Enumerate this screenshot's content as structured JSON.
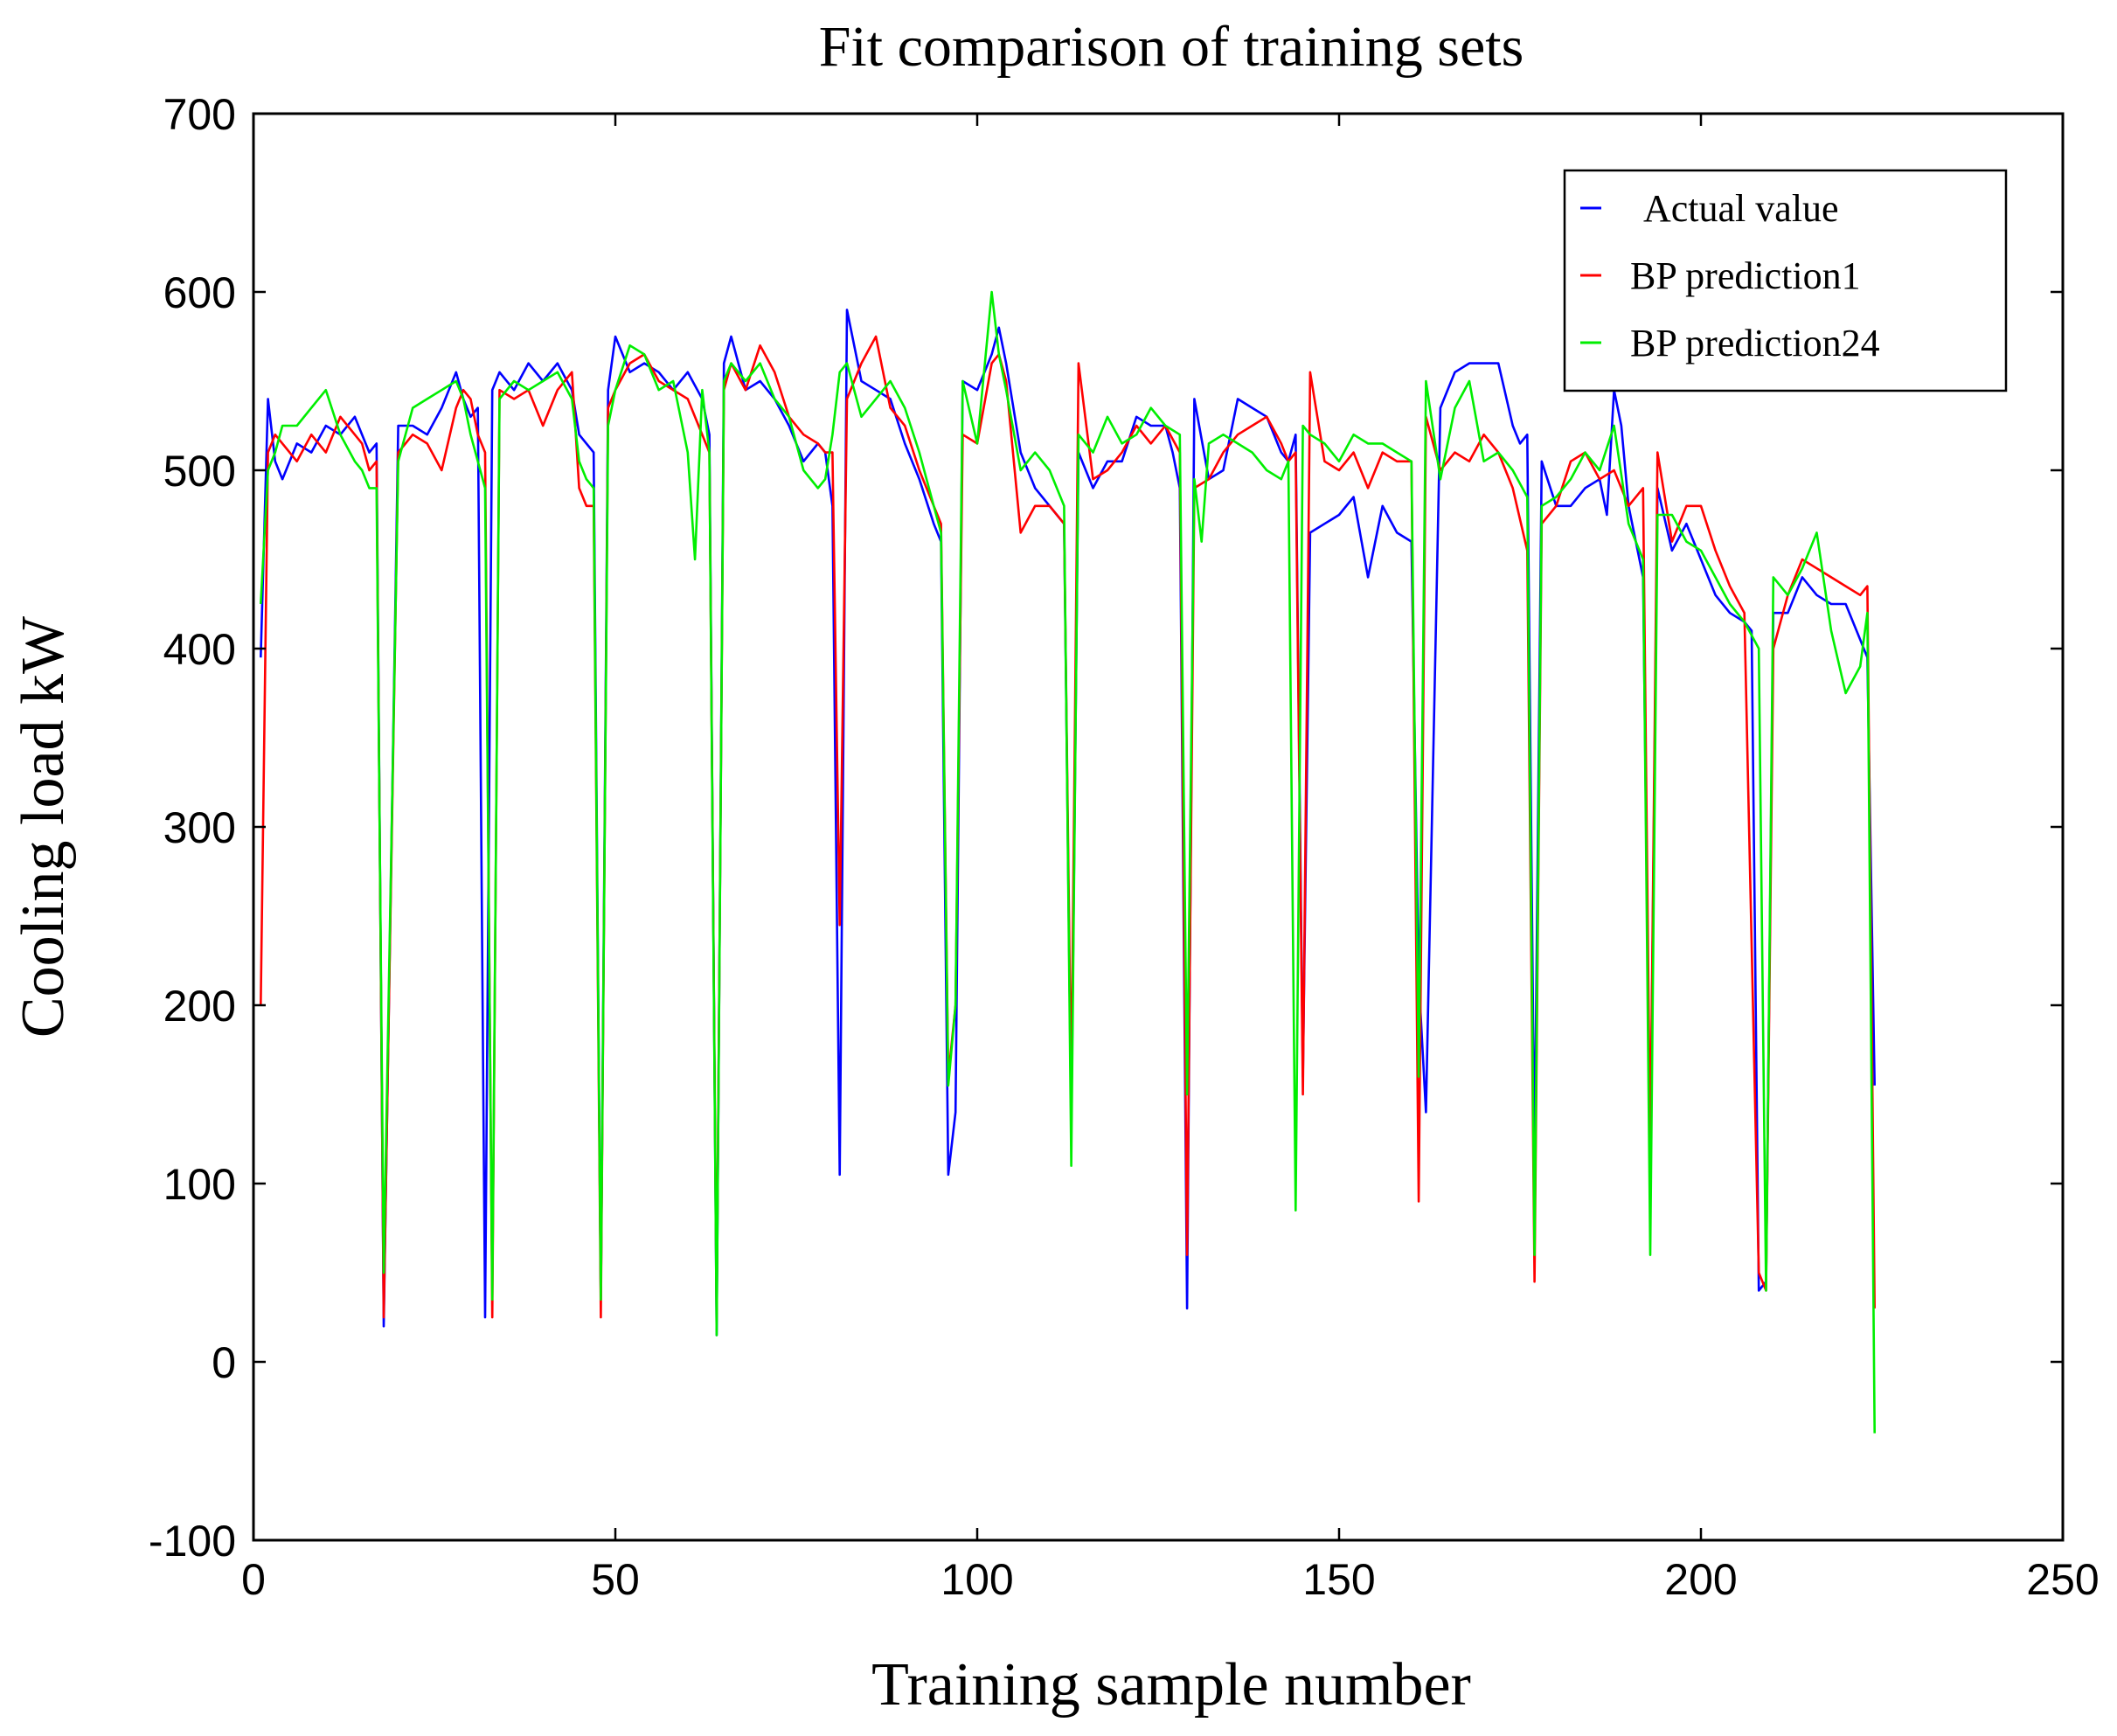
{
  "chart_data": {
    "type": "line",
    "title": "Fit comparison of training sets",
    "xlabel": "Training sample number",
    "ylabel": "Cooling load kW",
    "xlim": [
      0,
      250
    ],
    "ylim": [
      -100,
      700
    ],
    "xticks": [
      0,
      50,
      100,
      150,
      200,
      250
    ],
    "yticks": [
      -100,
      0,
      100,
      200,
      300,
      400,
      500,
      600,
      700
    ],
    "xtick_labels": [
      "0",
      "50",
      "100",
      "150",
      "200",
      "250"
    ],
    "ytick_labels": [
      "-100",
      "0",
      "100",
      "200",
      "300",
      "400",
      "500",
      "600",
      "700"
    ],
    "grid": false,
    "legend_position": "top-right",
    "series": [
      {
        "name": "Actual value",
        "color": "#0000ff",
        "x": [
          1,
          2,
          3,
          4,
          6,
          8,
          10,
          12,
          14,
          15,
          16,
          17,
          18,
          20,
          22,
          24,
          26,
          28,
          29,
          30,
          31,
          32,
          33,
          34,
          36,
          38,
          40,
          42,
          44,
          45,
          46,
          47,
          48,
          49,
          50,
          52,
          54,
          56,
          58,
          60,
          62,
          63,
          64,
          65,
          66,
          68,
          70,
          72,
          74,
          76,
          78,
          79,
          80,
          81,
          82,
          84,
          86,
          88,
          90,
          92,
          94,
          95,
          96,
          97,
          98,
          100,
          102,
          103,
          104,
          106,
          108,
          110,
          111,
          112,
          113,
          114,
          116,
          118,
          120,
          122,
          124,
          126,
          127,
          128,
          129,
          130,
          132,
          134,
          136,
          138,
          140,
          142,
          143,
          144,
          145,
          146,
          148,
          150,
          152,
          154,
          156,
          158,
          160,
          161,
          162,
          164,
          166,
          168,
          170,
          172,
          174,
          175,
          176,
          177,
          178,
          180,
          182,
          184,
          186,
          187,
          188,
          189,
          190,
          192,
          193,
          194,
          196,
          198,
          200,
          202,
          204,
          206,
          207,
          208,
          209,
          210,
          212,
          214,
          216,
          218,
          220,
          222,
          223,
          224
        ],
        "y": [
          395,
          540,
          505,
          495,
          515,
          510,
          525,
          520,
          530,
          520,
          510,
          515,
          20,
          525,
          525,
          520,
          535,
          555,
          540,
          530,
          535,
          25,
          545,
          555,
          545,
          560,
          550,
          560,
          545,
          520,
          515,
          510,
          35,
          545,
          575,
          555,
          560,
          555,
          545,
          555,
          540,
          520,
          15,
          560,
          575,
          545,
          550,
          540,
          525,
          505,
          515,
          510,
          480,
          105,
          590,
          550,
          545,
          540,
          515,
          495,
          470,
          460,
          105,
          140,
          550,
          545,
          565,
          580,
          560,
          510,
          490,
          480,
          475,
          470,
          130,
          510,
          490,
          505,
          505,
          530,
          525,
          525,
          510,
          490,
          30,
          540,
          495,
          500,
          540,
          535,
          530,
          510,
          505,
          520,
          160,
          465,
          470,
          475,
          485,
          440,
          480,
          465,
          460,
          215,
          140,
          535,
          555,
          560,
          560,
          560,
          525,
          515,
          520,
          110,
          505,
          480,
          480,
          490,
          495,
          475,
          545,
          525,
          480,
          440,
          110,
          490,
          455,
          470,
          450,
          430,
          420,
          415,
          410,
          40,
          45,
          420,
          420,
          440,
          430,
          425,
          425,
          405,
          395,
          155
        ]
      },
      {
        "name": "BP prediction1",
        "color": "#ff0000",
        "x": [
          1,
          2,
          3,
          4,
          6,
          8,
          10,
          12,
          14,
          15,
          16,
          17,
          18,
          20,
          22,
          24,
          26,
          28,
          29,
          30,
          31,
          32,
          33,
          34,
          36,
          38,
          40,
          42,
          44,
          45,
          46,
          47,
          48,
          49,
          50,
          52,
          54,
          56,
          58,
          60,
          62,
          63,
          64,
          65,
          66,
          68,
          70,
          72,
          74,
          76,
          78,
          79,
          80,
          81,
          82,
          84,
          86,
          88,
          90,
          92,
          94,
          95,
          96,
          97,
          98,
          100,
          102,
          103,
          104,
          106,
          108,
          110,
          112,
          113,
          114,
          116,
          118,
          120,
          122,
          124,
          126,
          128,
          129,
          130,
          132,
          134,
          136,
          138,
          140,
          142,
          143,
          144,
          145,
          146,
          148,
          150,
          152,
          154,
          156,
          158,
          160,
          161,
          162,
          164,
          166,
          168,
          170,
          172,
          174,
          176,
          177,
          178,
          180,
          182,
          184,
          186,
          188,
          190,
          192,
          193,
          194,
          196,
          198,
          200,
          202,
          204,
          206,
          208,
          209,
          210,
          212,
          214,
          216,
          218,
          220,
          222,
          223,
          224
        ],
        "y": [
          200,
          510,
          520,
          515,
          505,
          520,
          510,
          530,
          520,
          515,
          500,
          505,
          25,
          510,
          520,
          515,
          500,
          535,
          545,
          540,
          520,
          510,
          25,
          545,
          540,
          545,
          525,
          545,
          555,
          490,
          480,
          480,
          25,
          535,
          545,
          560,
          565,
          550,
          545,
          540,
          520,
          510,
          25,
          545,
          560,
          545,
          570,
          555,
          530,
          520,
          515,
          510,
          510,
          245,
          540,
          560,
          575,
          535,
          525,
          500,
          480,
          470,
          160,
          200,
          520,
          515,
          560,
          565,
          550,
          465,
          480,
          480,
          470,
          150,
          560,
          495,
          500,
          510,
          525,
          515,
          525,
          510,
          60,
          490,
          495,
          510,
          520,
          525,
          530,
          515,
          505,
          510,
          150,
          555,
          505,
          500,
          510,
          490,
          510,
          505,
          505,
          90,
          530,
          500,
          510,
          505,
          520,
          510,
          490,
          455,
          45,
          470,
          480,
          505,
          510,
          495,
          500,
          480,
          490,
          115,
          510,
          460,
          480,
          480,
          455,
          435,
          420,
          50,
          40,
          400,
          430,
          450,
          445,
          440,
          435,
          430,
          435,
          30
        ]
      },
      {
        "name": "BP prediction24",
        "color": "#00ee00",
        "x": [
          1,
          2,
          3,
          4,
          6,
          8,
          10,
          12,
          14,
          15,
          16,
          17,
          18,
          20,
          22,
          24,
          26,
          28,
          29,
          30,
          31,
          32,
          33,
          34,
          36,
          38,
          40,
          42,
          44,
          45,
          46,
          47,
          48,
          49,
          50,
          52,
          54,
          56,
          58,
          60,
          61,
          62,
          63,
          64,
          65,
          66,
          68,
          70,
          72,
          74,
          76,
          78,
          79,
          80,
          81,
          82,
          84,
          86,
          88,
          90,
          92,
          94,
          95,
          96,
          97,
          98,
          100,
          102,
          103,
          104,
          106,
          108,
          110,
          112,
          113,
          114,
          116,
          118,
          120,
          122,
          124,
          126,
          128,
          129,
          130,
          131,
          132,
          134,
          136,
          138,
          140,
          142,
          143,
          144,
          145,
          146,
          148,
          150,
          152,
          154,
          156,
          158,
          160,
          161,
          162,
          164,
          166,
          168,
          170,
          172,
          174,
          176,
          177,
          178,
          180,
          182,
          184,
          186,
          188,
          190,
          192,
          193,
          194,
          196,
          198,
          200,
          202,
          204,
          206,
          208,
          209,
          210,
          212,
          214,
          216,
          218,
          220,
          222,
          223,
          224
        ],
        "y": [
          425,
          500,
          510,
          525,
          525,
          535,
          545,
          520,
          505,
          500,
          490,
          490,
          50,
          505,
          535,
          540,
          545,
          550,
          540,
          520,
          505,
          490,
          35,
          540,
          550,
          545,
          550,
          555,
          540,
          505,
          495,
          490,
          35,
          525,
          545,
          570,
          565,
          545,
          550,
          510,
          450,
          545,
          510,
          15,
          550,
          560,
          550,
          560,
          540,
          530,
          500,
          490,
          495,
          520,
          555,
          560,
          530,
          540,
          550,
          535,
          510,
          480,
          465,
          155,
          200,
          550,
          515,
          600,
          565,
          545,
          500,
          510,
          500,
          480,
          110,
          520,
          510,
          530,
          515,
          520,
          535,
          525,
          520,
          150,
          495,
          460,
          515,
          520,
          515,
          510,
          500,
          495,
          505,
          85,
          525,
          520,
          515,
          505,
          520,
          515,
          515,
          510,
          505,
          160,
          550,
          495,
          535,
          550,
          505,
          510,
          500,
          485,
          60,
          480,
          485,
          495,
          510,
          500,
          525,
          470,
          450,
          60,
          475,
          475,
          460,
          455,
          440,
          425,
          415,
          400,
          40,
          440,
          430,
          445,
          465,
          410,
          375,
          390,
          420,
          -40
        ]
      }
    ]
  }
}
